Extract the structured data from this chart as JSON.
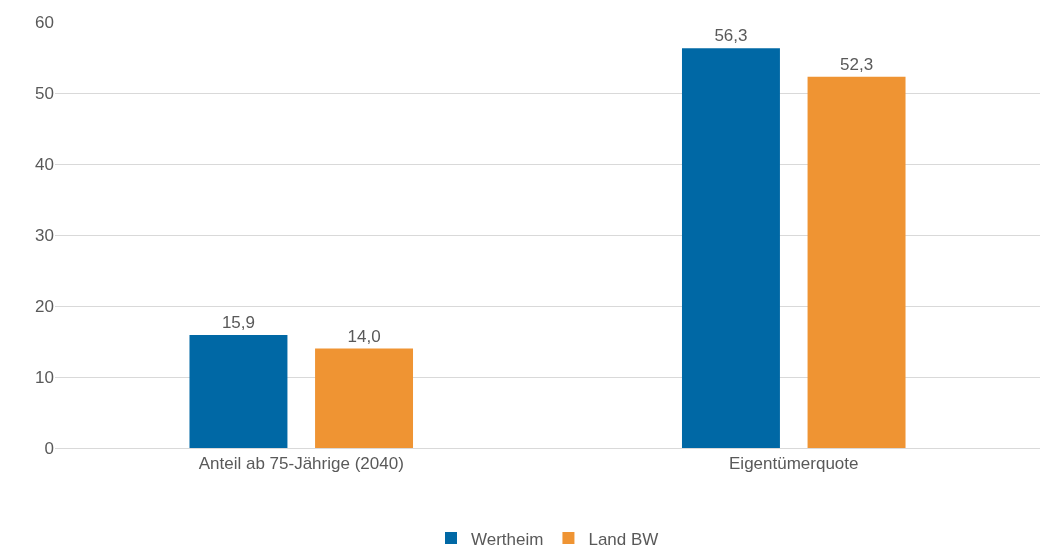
{
  "chart_data": {
    "type": "bar",
    "categories": [
      "Anteil ab 75-Jährige (2040)",
      "Eigentümerquote"
    ],
    "series": [
      {
        "name": "Wertheim",
        "color": "#0068a5",
        "values": [
          15.9,
          56.3
        ],
        "value_labels": [
          "15,9",
          "56,3"
        ]
      },
      {
        "name": "Land BW",
        "color": "#ef9433",
        "values": [
          14.0,
          52.3
        ],
        "value_labels": [
          "14,0",
          "52,3"
        ]
      }
    ],
    "ylim": [
      0,
      60
    ],
    "yticks": [
      0,
      10,
      20,
      30,
      40,
      50,
      60
    ],
    "grid": "y",
    "legend": "bottom"
  }
}
